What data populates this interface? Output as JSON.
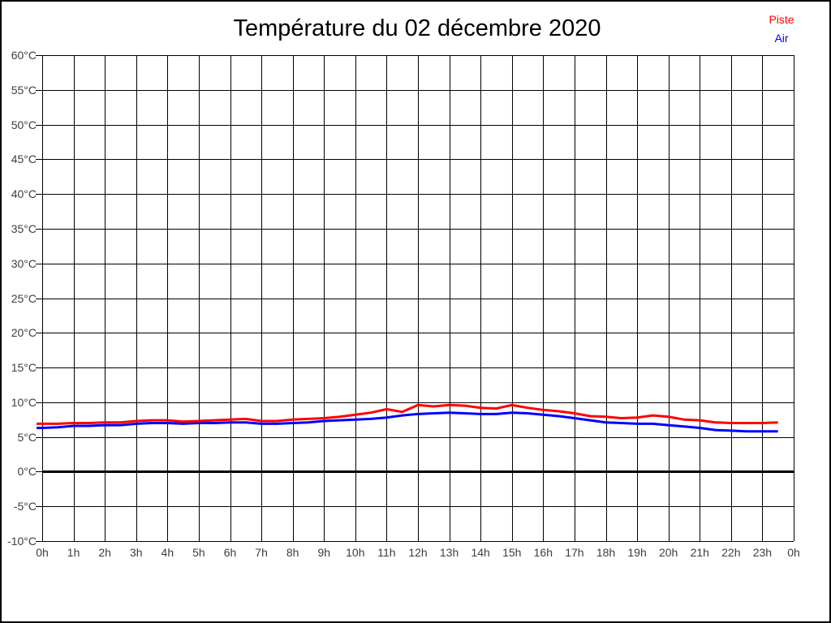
{
  "chart_data": {
    "type": "line",
    "title": "Température du 02 décembre 2020",
    "xlabel": "",
    "ylabel": "",
    "xlim_hours": [
      0,
      24
    ],
    "ylim": [
      -10,
      60
    ],
    "grid": true,
    "zero_line": {
      "value": 0,
      "width": 3,
      "color": "#000000"
    },
    "x_start_hour": 0,
    "x_step_hours": 0.5,
    "x_tick_labels": [
      "0h",
      "1h",
      "2h",
      "3h",
      "4h",
      "5h",
      "6h",
      "7h",
      "8h",
      "9h",
      "10h",
      "11h",
      "12h",
      "13h",
      "14h",
      "15h",
      "16h",
      "17h",
      "18h",
      "19h",
      "20h",
      "21h",
      "22h",
      "23h",
      "0h"
    ],
    "y_tick_values": [
      60,
      55,
      50,
      45,
      40,
      35,
      30,
      25,
      20,
      15,
      10,
      5,
      0,
      -5,
      -10
    ],
    "y_tick_labels": [
      "60°C",
      "55°C",
      "50°C",
      "45°C",
      "40°C",
      "35°C",
      "30°C",
      "25°C",
      "20°C",
      "15°C",
      "10°C",
      "5°C",
      "0°C",
      "-5°C",
      "-10°C"
    ],
    "legend_position": "top-right",
    "series": [
      {
        "name": "Piste",
        "color": "#ff0000",
        "values": [
          6.9,
          6.9,
          7.0,
          7.0,
          7.1,
          7.1,
          7.3,
          7.4,
          7.4,
          7.2,
          7.3,
          7.4,
          7.5,
          7.6,
          7.3,
          7.3,
          7.5,
          7.6,
          7.7,
          7.9,
          8.2,
          8.5,
          9.0,
          8.6,
          9.6,
          9.4,
          9.6,
          9.5,
          9.2,
          9.1,
          9.6,
          9.2,
          8.9,
          8.7,
          8.4,
          8.0,
          7.9,
          7.7,
          7.8,
          8.1,
          7.9,
          7.5,
          7.4,
          7.1,
          7.0,
          7.0,
          7.0,
          7.1
        ]
      },
      {
        "name": "Air",
        "color": "#0000ff",
        "values": [
          6.3,
          6.4,
          6.6,
          6.6,
          6.7,
          6.7,
          6.9,
          7.0,
          7.0,
          6.9,
          7.0,
          7.0,
          7.1,
          7.1,
          6.9,
          6.9,
          7.0,
          7.1,
          7.3,
          7.4,
          7.5,
          7.6,
          7.8,
          8.1,
          8.3,
          8.4,
          8.5,
          8.4,
          8.3,
          8.3,
          8.5,
          8.4,
          8.2,
          8.0,
          7.7,
          7.4,
          7.1,
          7.0,
          6.9,
          6.9,
          6.7,
          6.5,
          6.3,
          6.0,
          5.9,
          5.8,
          5.8,
          5.8
        ]
      }
    ]
  },
  "colors": {
    "background": "#ffffff",
    "border": "#000000",
    "grid": "#000000",
    "axis_text": "#3d3d3d",
    "title_text": "#000000"
  }
}
